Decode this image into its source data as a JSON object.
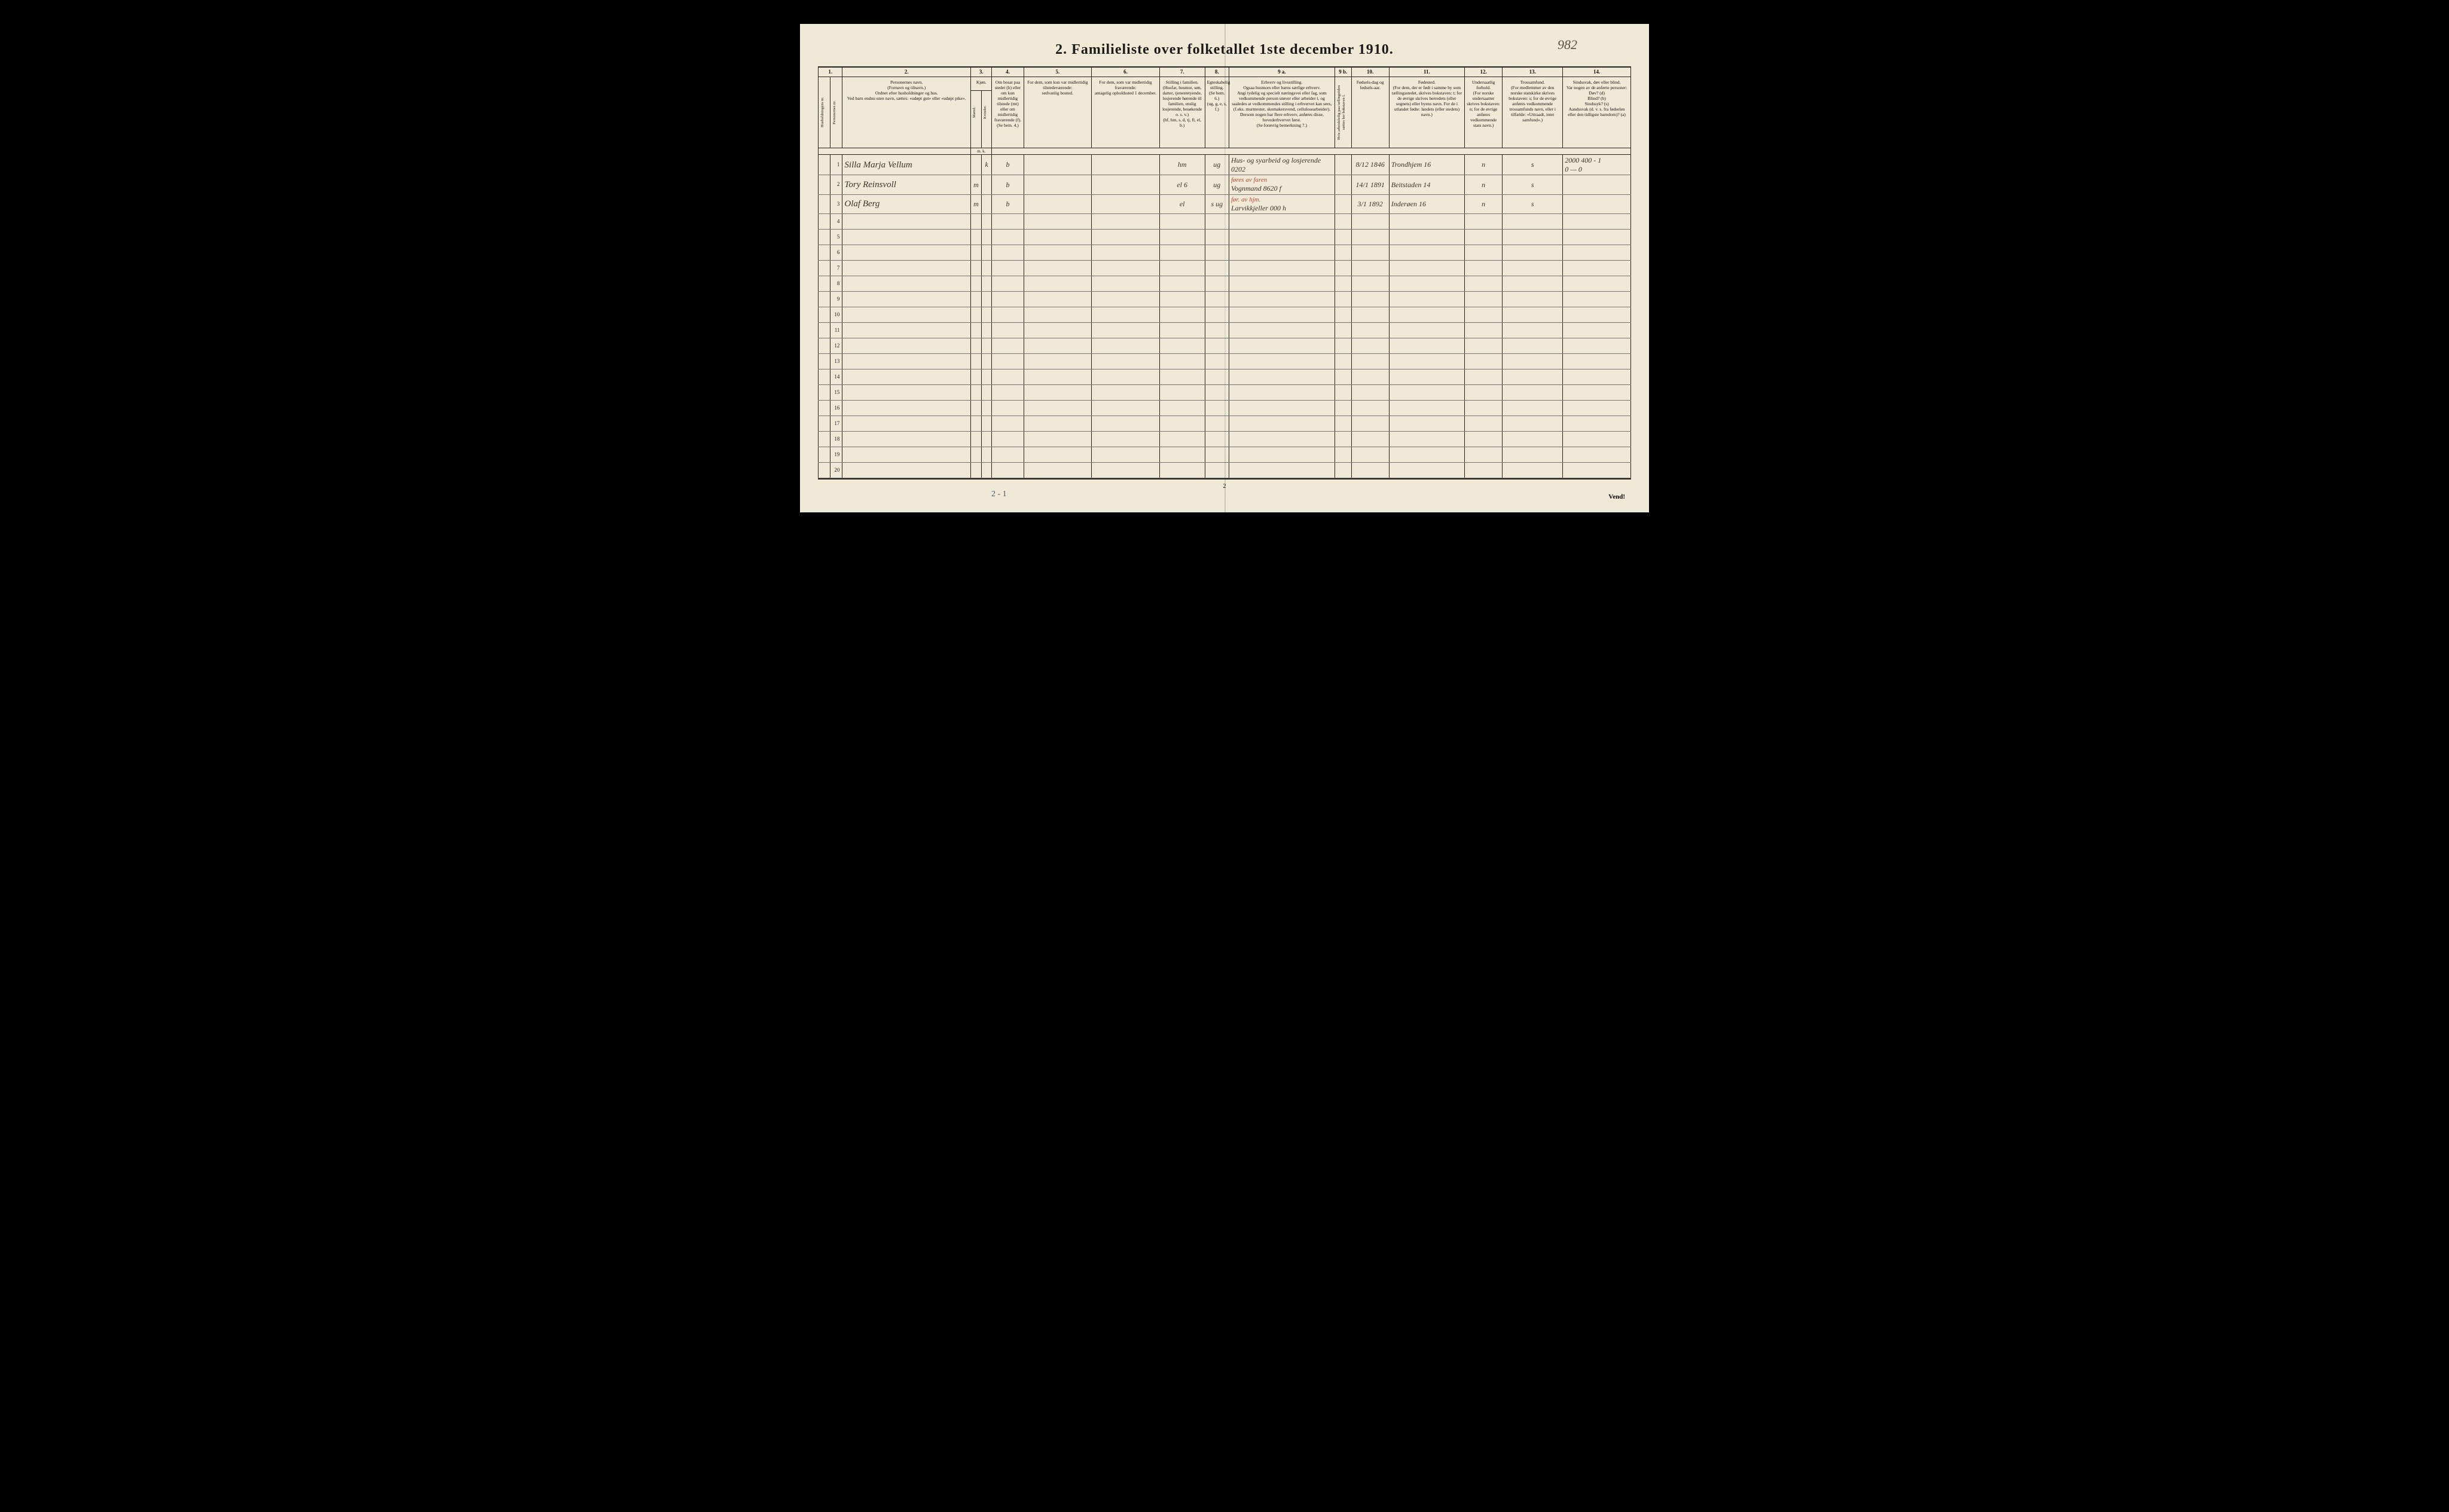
{
  "document": {
    "title": "2.  Familieliste over folketallet 1ste december 1910.",
    "handwritten_top_right": "982",
    "footer_page": "2",
    "vend": "Vend!",
    "bottom_handwritten": "2 - 1"
  },
  "columns": {
    "numbers": [
      "1.",
      "2.",
      "3.",
      "4.",
      "5.",
      "6.",
      "7.",
      "8.",
      "9 a.",
      "9 b.",
      "10.",
      "11.",
      "12.",
      "13.",
      "14."
    ],
    "col1a": "Husholdningens nr.",
    "col1b": "Personernes nr.",
    "col2": "Personernes navn.\n(Fornavn og tilnavn.)\nOrdnet efter husholdninger og hus.\nVed barn endnu uten navn, sættes: «udøpt gut» eller «udøpt pike».",
    "col3": "Kjøn.",
    "col3_sub_m": "Mænd.",
    "col3_sub_k": "Kvinder.",
    "col3_mk": "m.  k.",
    "col4": "Om bosat paa stedet (b) eller om kun midlertidig tilstede (mt) eller om midlertidig fraværende (f).\n(Se bem. 4.)",
    "col5": "For dem, som kun var midlertidig tilstedeværende:\nsedvanlig bosted.",
    "col6": "For dem, som var midlertidig fraværende:\nantagelig opholdssted 1 december.",
    "col7": "Stilling i familien.\n(Husfar, husmor, søn, datter, tjenestetyende, losjerende hørende til familien, enslig losjerende, besøkende o. s. v.)\n(hf, hm, s, d, tj, fl, el, b.)",
    "col8": "Egteskabelig stilling.\n(Se bem. 6.)\n(ug, g, e, s, f.)",
    "col9a": "Erhverv og livsstilling.\nOgsaa husmors eller barns særlige erhverv.\nAngi tydelig og specielt næringsveí eller fag, som vedkommende person utøver eller arbeider i, og saaledes at vedkommendes stilling i erhvervet kan sees, (f.eks. murmester, skomakersvend, cellulosearbeider). Dersom nogen har flere erhverv, anføres disse, hovederhvervet først.\n(Se forøvrig bemerkning 7.)",
    "col9b": "Hvis arbeidsledig paa tællingstiden sættes her bokstaven l.",
    "col10": "Fødsels-dag og fødsels-aar.",
    "col11": "Fødested.\n(For dem, der er født i samme by som tællingsstedet, skrives bokstaven: t; for de øvrige skrives herredets (eller sognets) eller byens navn. For de i utlandet fødte: landets (eller stedets) navn.)",
    "col12": "Undersaatlig forhold.\n(For norske undersaatter skrives bokstaven: n; for de øvrige anføres vedkommende stats navn.)",
    "col13": "Trossamfund.\n(For medlemmer av den norske statskirke skrives bokstaven: s; for de øvrige anføres vedkommende trossamfunds navn, eller i tilfælde: «Uttraadt, intet samfund».)",
    "col14": "Sindssvak, døv eller blind.\nVar nogen av de anførte personer:\nDøv?        (d)\nBlind?      (b)\nSindssyk?   (s)\nAandssvak (d. v. s. fra fødselen eller den tidligste barndom)?  (a)"
  },
  "rows": [
    {
      "n": "1",
      "name": "Silla Marja Vellum",
      "sex": "k",
      "res": "b",
      "fam": "hm",
      "civ": "ug",
      "occ": "Hus- og syarbeid og losjerende   0202",
      "dob": "8/12 1846",
      "birthplace": "Trondhjem 16",
      "nat": "n",
      "rel": "s",
      "col14": "2000  400 - 1\n0  —  0"
    },
    {
      "n": "2",
      "name": "Tory Reinsvoll",
      "sex": "m",
      "res": "b",
      "fam": "el      6",
      "civ": "ug",
      "occ": "Vognmand  8620  f",
      "occ_red": "føres av faren",
      "dob": "14/1 1891",
      "birthplace": "Beitstaden 14",
      "nat": "n",
      "rel": "s",
      "col14": ""
    },
    {
      "n": "3",
      "name": "Olaf Berg",
      "sex": "m",
      "res": "b",
      "fam": "el",
      "civ": "s ug",
      "occ": "Larvikkjeller 000    h",
      "occ_red": "før. av hjm.",
      "dob": "3/1 1892",
      "birthplace": "Inderøen 16",
      "nat": "n",
      "rel": "s",
      "col14": ""
    }
  ],
  "empty_rows": [
    "4",
    "5",
    "6",
    "7",
    "8",
    "9",
    "10",
    "11",
    "12",
    "13",
    "14",
    "15",
    "16",
    "17",
    "18",
    "19",
    "20"
  ],
  "layout": {
    "col_widths_pct": [
      1.6,
      1.6,
      17,
      1.4,
      1.4,
      4.2,
      9,
      9,
      6,
      3.2,
      14,
      2.2,
      5,
      10,
      5,
      8,
      9
    ],
    "background_color": "#f0e9d6",
    "line_color": "#222222",
    "hand_color": "#3a352a",
    "red_ink": "#b84a3a"
  }
}
